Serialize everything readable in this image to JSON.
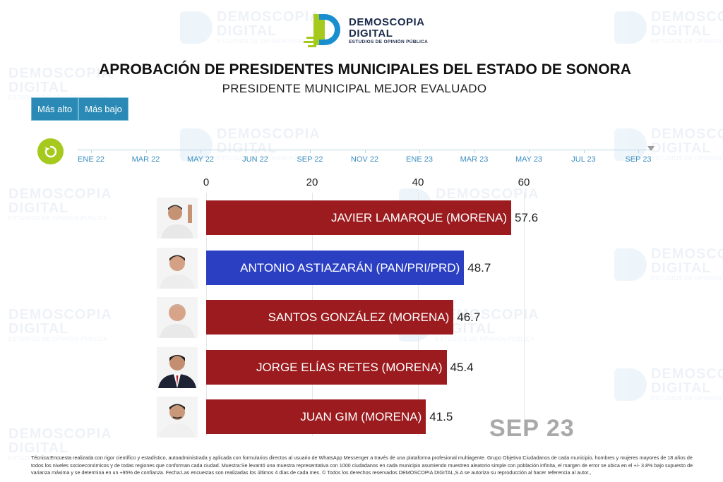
{
  "brand": {
    "name_line1": "DEMOSCOPIA",
    "name_line2": "DIGITAL",
    "tagline": "ESTUDIOS DE OPINIÓN PÚBLICA",
    "watermark_tagline": "ESTUDIOS DE OPINIÓN PÚBLICA"
  },
  "header": {
    "title": "APROBACIÓN DE PRESIDENTES MUNICIPALES DEL ESTADO DE SONORA",
    "subtitle": "PRESIDENTE MUNICIPAL MEJOR EVALUADO"
  },
  "controls": {
    "sort_high_label": "Más alto",
    "sort_low_label": "Más bajo"
  },
  "timeline": {
    "labels": [
      "ENE 22",
      "MAR 22",
      "MAY 22",
      "JUN 22",
      "SEP 22",
      "NOV 22",
      "ENE 23",
      "MAR 23",
      "MAY 23",
      "JUL 23",
      "SEP 23"
    ],
    "current_index": 10
  },
  "chart_data": {
    "type": "bar",
    "orientation": "horizontal",
    "categories": [
      "JAVIER LAMARQUE (MORENA)",
      "ANTONIO ASTIAZARÁN (PAN/PRI/PRD)",
      "SANTOS GONZÁLEZ (MORENA)",
      "JORGE ELÍAS RETES (MORENA)",
      "JUAN GIM (MORENA)"
    ],
    "values": [
      57.6,
      48.7,
      46.7,
      45.4,
      41.5
    ],
    "colors": [
      "#9b1b1e",
      "#2b3fc3",
      "#9b1b1e",
      "#9b1b1e",
      "#9b1b1e"
    ],
    "xticks": [
      0,
      20,
      40,
      60
    ],
    "xlim": [
      0,
      60
    ],
    "period": "SEP 23"
  },
  "footnote": "Técnica:Encuesta realizada con rigor científico y estadístico, autoadministrada y aplicada con formularios directos al usuario de WhatsApp Messenger a través de una plataforma profesional multiagente. Grupo Objetivo:Ciudadanos de cada municipio, hombres y mujeres mayores de 18 años de todos los niveles socioeconómicos y de todas regiones que conforman cada ciudad. Muestra:Se levantó una muestra representativa con 1000 ciudadanos en cada municipio asumiendo muestreo aleatorio simple con población infinita, el margen de error se ubica en el +/- 3.8% bajo supuesto de varianza máxima y se determina en un +95% de confianza. Fecha:Las encuestas son realizadas los últimos 4 días de cada mes. © Todos los derechos reservados DEMOSCOPIA DIGITAL,S.A se autoriza su reproducción al hacer referencia al autor.,"
}
